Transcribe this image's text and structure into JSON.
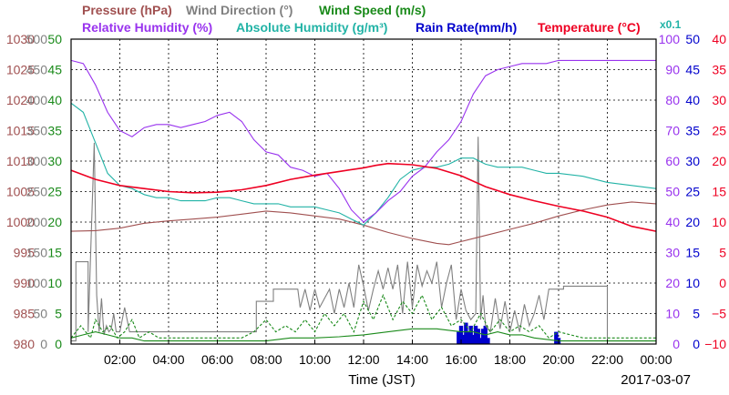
{
  "chart_data": {
    "type": "line",
    "date": "2017-03-07",
    "xlabel": "Time (JST)",
    "x_ticks": [
      "02:00",
      "04:00",
      "06:00",
      "08:00",
      "10:00",
      "12:00",
      "14:00",
      "16:00",
      "18:00",
      "20:00",
      "22:00",
      "00:00"
    ],
    "x_range_hours": [
      0,
      24
    ],
    "grid": true,
    "legend": {
      "row1": [
        {
          "name": "Pressure (hPa)",
          "color": "#a05050"
        },
        {
          "name": "Wind Direction (°)",
          "color": "#808080"
        },
        {
          "name": "Wind Speed (m/s)",
          "color": "#1a8a1a"
        }
      ],
      "row2": [
        {
          "name": "Relative Humidity (%)",
          "color": "#9933ee"
        },
        {
          "name": "Absolute Humidity (g/m³)",
          "color": "#22b3a6"
        },
        {
          "name": "Rain Rate(mm/h)",
          "color": "#0000cc"
        },
        {
          "name": "Temperature (°C)",
          "color": "#ee0022"
        }
      ],
      "abs_humidity_scale_note": "x0.1"
    },
    "axes": {
      "pressure": {
        "range": [
          980,
          1030
        ],
        "ticks": [
          "1030",
          "1025",
          "1020",
          "1015",
          "1010",
          "1005",
          "1000",
          "995",
          "990",
          "985",
          "980"
        ],
        "color": "#a05050"
      },
      "wind_direction": {
        "range": [
          0,
          500
        ],
        "ticks": [
          "500",
          "450",
          "400",
          "350",
          "300",
          "250",
          "200",
          "150",
          "100",
          "50",
          "0"
        ],
        "color": "#808080"
      },
      "wind_speed": {
        "range": [
          0,
          50
        ],
        "ticks": [
          "50",
          "45",
          "40",
          "35",
          "30",
          "25",
          "20",
          "15",
          "10",
          "5",
          "0"
        ],
        "color": "#1a8a1a"
      },
      "humidity": {
        "range": [
          0,
          100
        ],
        "ticks": [
          "100",
          "90",
          "80",
          "70",
          "60",
          "50",
          "40",
          "30",
          "20",
          "10",
          "0"
        ],
        "color": "#9933ee"
      },
      "rain_rate": {
        "range": [
          0,
          50
        ],
        "ticks": [
          "50",
          "45",
          "40",
          "35",
          "30",
          "25",
          "20",
          "15",
          "10",
          "5",
          "0"
        ],
        "color": "#0000cc"
      },
      "temperature": {
        "range": [
          -10,
          40
        ],
        "ticks": [
          "40",
          "35",
          "30",
          "25",
          "20",
          "15",
          "10",
          "5",
          "0",
          "−5",
          "−10"
        ],
        "color": "#ee0022"
      }
    },
    "series": [
      {
        "name": "Relative Humidity (%)",
        "axis": "humidity",
        "x": [
          0,
          0.5,
          1,
          1.5,
          2,
          2.5,
          3,
          3.5,
          4,
          4.5,
          5,
          5.5,
          6,
          6.5,
          7,
          7.5,
          8,
          8.5,
          9,
          9.5,
          10,
          10.5,
          11,
          11.5,
          12,
          12.5,
          13,
          13.5,
          14,
          14.5,
          15,
          15.5,
          16,
          16.5,
          17,
          17.5,
          18,
          18.5,
          19,
          19.5,
          20,
          21,
          22,
          23,
          24
        ],
        "y": [
          93,
          92,
          85,
          76,
          70,
          68,
          71,
          72,
          72,
          71,
          72,
          73,
          75,
          76,
          73,
          67,
          63,
          62,
          58,
          57,
          55,
          56,
          51,
          44,
          40,
          43,
          47,
          50,
          55,
          58,
          63,
          67,
          73,
          82,
          88,
          90,
          91,
          92,
          92,
          92,
          93,
          93,
          93,
          93,
          93
        ]
      },
      {
        "name": "Absolute Humidity (g/m³)",
        "axis": "humidity",
        "x": [
          0,
          0.5,
          1,
          1.5,
          2,
          2.5,
          3,
          3.5,
          4,
          4.5,
          5,
          5.5,
          6,
          6.5,
          7,
          7.5,
          8,
          8.5,
          9,
          9.5,
          10,
          10.5,
          11,
          11.5,
          12,
          12.5,
          13,
          13.5,
          14,
          14.5,
          15,
          15.5,
          16,
          16.5,
          17,
          17.5,
          18,
          18.5,
          19,
          19.5,
          20,
          21,
          22,
          23,
          24
        ],
        "y": [
          79,
          76,
          66,
          56,
          52,
          51,
          49,
          48,
          48,
          47,
          47,
          47,
          48,
          48,
          47,
          46,
          46,
          46,
          45,
          45,
          45,
          44,
          43,
          41,
          39,
          43,
          48,
          54,
          57,
          58,
          58,
          59,
          61,
          61,
          59,
          58,
          58,
          58,
          57,
          56,
          56,
          55,
          53,
          52,
          51
        ]
      },
      {
        "name": "Temperature (°C)",
        "axis": "temperature",
        "x": [
          0,
          1,
          2,
          3,
          4,
          5,
          6,
          7,
          8,
          9,
          10,
          11,
          12,
          12.5,
          13,
          14,
          15,
          16,
          17,
          18,
          19,
          20,
          21,
          22,
          23,
          24
        ],
        "y": [
          18.5,
          17,
          16,
          15.5,
          15,
          14.8,
          14.9,
          15.3,
          16,
          17,
          17.7,
          18.3,
          18.9,
          19.3,
          19.6,
          19.4,
          18.8,
          17.6,
          15.8,
          14.5,
          13.5,
          12.6,
          11.8,
          10.8,
          9.3,
          8.5
        ]
      },
      {
        "name": "Pressure (hPa)",
        "axis": "pressure",
        "x": [
          0,
          1,
          2,
          3,
          4,
          5,
          6,
          7,
          8,
          9,
          10,
          11,
          12,
          13,
          14,
          15,
          15.5,
          16,
          17,
          18,
          19,
          20,
          21,
          22,
          23,
          24
        ],
        "y": [
          998.5,
          998.6,
          999,
          999.8,
          1000.2,
          1000.5,
          1000.8,
          1001.3,
          1001.8,
          1001.5,
          1001,
          1000.5,
          999.5,
          998.3,
          997.3,
          996.5,
          996.3,
          996.8,
          997.8,
          998.8,
          999.8,
          1001,
          1002,
          1002.8,
          1003.3,
          1003
        ]
      },
      {
        "name": "Wind Direction (°)",
        "axis": "wind_direction",
        "x": [
          0,
          0.2,
          0.2,
          0.7,
          0.7,
          0.95,
          1.05,
          1.15,
          1.25,
          1.35,
          1.45,
          1.55,
          1.65,
          1.75,
          1.85,
          2.0,
          2.2,
          2.4,
          2.6,
          2.8,
          3.0,
          3.2,
          3.5,
          3.5,
          5.0,
          5.0,
          7.6,
          7.6,
          8.3,
          8.3,
          9.3,
          9.4,
          9.6,
          9.8,
          10.0,
          10.2,
          10.4,
          10.6,
          10.8,
          11.0,
          11.2,
          11.4,
          11.6,
          11.8,
          12.0,
          12.2,
          12.4,
          12.6,
          12.8,
          13.0,
          13.2,
          13.4,
          13.6,
          13.8,
          14.0,
          14.2,
          14.4,
          14.6,
          14.8,
          15.0,
          15.2,
          15.4,
          15.6,
          15.8,
          16.0,
          16.2,
          16.4,
          16.6,
          16.7,
          16.8,
          16.9,
          17.0,
          17.2,
          17.4,
          17.6,
          17.8,
          18.0,
          18.2,
          18.4,
          18.6,
          18.8,
          19.0,
          19.2,
          19.4,
          19.6,
          19.8,
          20.0,
          20.2,
          20.2,
          21.5,
          21.5,
          22.0,
          22.0,
          24
        ],
        "y": [
          5,
          5,
          135,
          135,
          20,
          330,
          80,
          20,
          75,
          15,
          30,
          20,
          25,
          50,
          20,
          20,
          60,
          20,
          20,
          20,
          20,
          20,
          20,
          20,
          20,
          20,
          20,
          70,
          70,
          90,
          90,
          60,
          90,
          55,
          90,
          60,
          75,
          90,
          50,
          90,
          60,
          100,
          60,
          130,
          95,
          55,
          90,
          120,
          90,
          125,
          90,
          130,
          50,
          135,
          60,
          130,
          95,
          120,
          100,
          135,
          60,
          100,
          130,
          40,
          90,
          55,
          40,
          50,
          340,
          40,
          80,
          30,
          20,
          75,
          25,
          70,
          20,
          55,
          20,
          65,
          30,
          50,
          80,
          40,
          90,
          90,
          90,
          90,
          95,
          95,
          95,
          95,
          5,
          5
        ]
      },
      {
        "name": "Wind Speed (m/s)",
        "axis": "wind_speed",
        "x": [
          0,
          0.5,
          1,
          1.5,
          2,
          2.5,
          3,
          4,
          5,
          6,
          7,
          8,
          9,
          10,
          11,
          12,
          13,
          14,
          15,
          16,
          16.5,
          17,
          17.5,
          18,
          18.5,
          19,
          20,
          21,
          22,
          23,
          24
        ],
        "y": [
          1,
          1.5,
          2,
          1.5,
          1,
          1,
          0.5,
          0.5,
          0.5,
          0.5,
          0.5,
          0.5,
          1,
          1,
          1.2,
          1.5,
          2,
          2.5,
          2.5,
          2,
          2,
          1.5,
          2,
          1.5,
          1.5,
          1,
          0.5,
          0.5,
          0.5,
          0.5,
          0.5
        ]
      },
      {
        "name": "Wind Speed gust (m/s)",
        "axis": "wind_speed",
        "style": "dashed",
        "x": [
          0,
          0.4,
          0.8,
          1.0,
          1.3,
          1.6,
          1.9,
          2.2,
          2.5,
          2.8,
          3.2,
          3.6,
          4.0,
          5.0,
          6.0,
          7.0,
          7.5,
          8.0,
          8.4,
          8.8,
          9.2,
          9.6,
          10.0,
          10.4,
          10.8,
          11.2,
          11.6,
          12.0,
          12.4,
          12.8,
          13.2,
          13.6,
          14.0,
          14.4,
          14.8,
          15.2,
          15.6,
          16.0,
          16.4,
          16.8,
          17.2,
          17.6,
          18.0,
          18.4,
          18.8,
          19.2,
          19.6,
          20.0,
          21.0,
          22.0,
          23.0,
          24
        ],
        "y": [
          1,
          3,
          1,
          4,
          2,
          3,
          1,
          2,
          4,
          1,
          2,
          1,
          1,
          1,
          1,
          1,
          2,
          4,
          2,
          3,
          2,
          4,
          2,
          5,
          3,
          5,
          2,
          7,
          4,
          8,
          4,
          7,
          5,
          8,
          4,
          6,
          3,
          4,
          2,
          5,
          2,
          4,
          2,
          3,
          2,
          3,
          1,
          2,
          1,
          1,
          1,
          1
        ]
      },
      {
        "name": "Rain Rate(mm/h)",
        "axis": "rain_rate",
        "style": "bars",
        "x": [
          15.9,
          16.0,
          16.1,
          16.2,
          16.3,
          16.4,
          16.5,
          16.6,
          16.7,
          16.8,
          16.9,
          17.0,
          17.1,
          19.9,
          20.0
        ],
        "y": [
          2,
          3,
          1.5,
          3.5,
          2,
          3,
          1.5,
          3,
          2.5,
          1,
          2.5,
          3,
          1,
          2,
          1
        ]
      }
    ]
  }
}
